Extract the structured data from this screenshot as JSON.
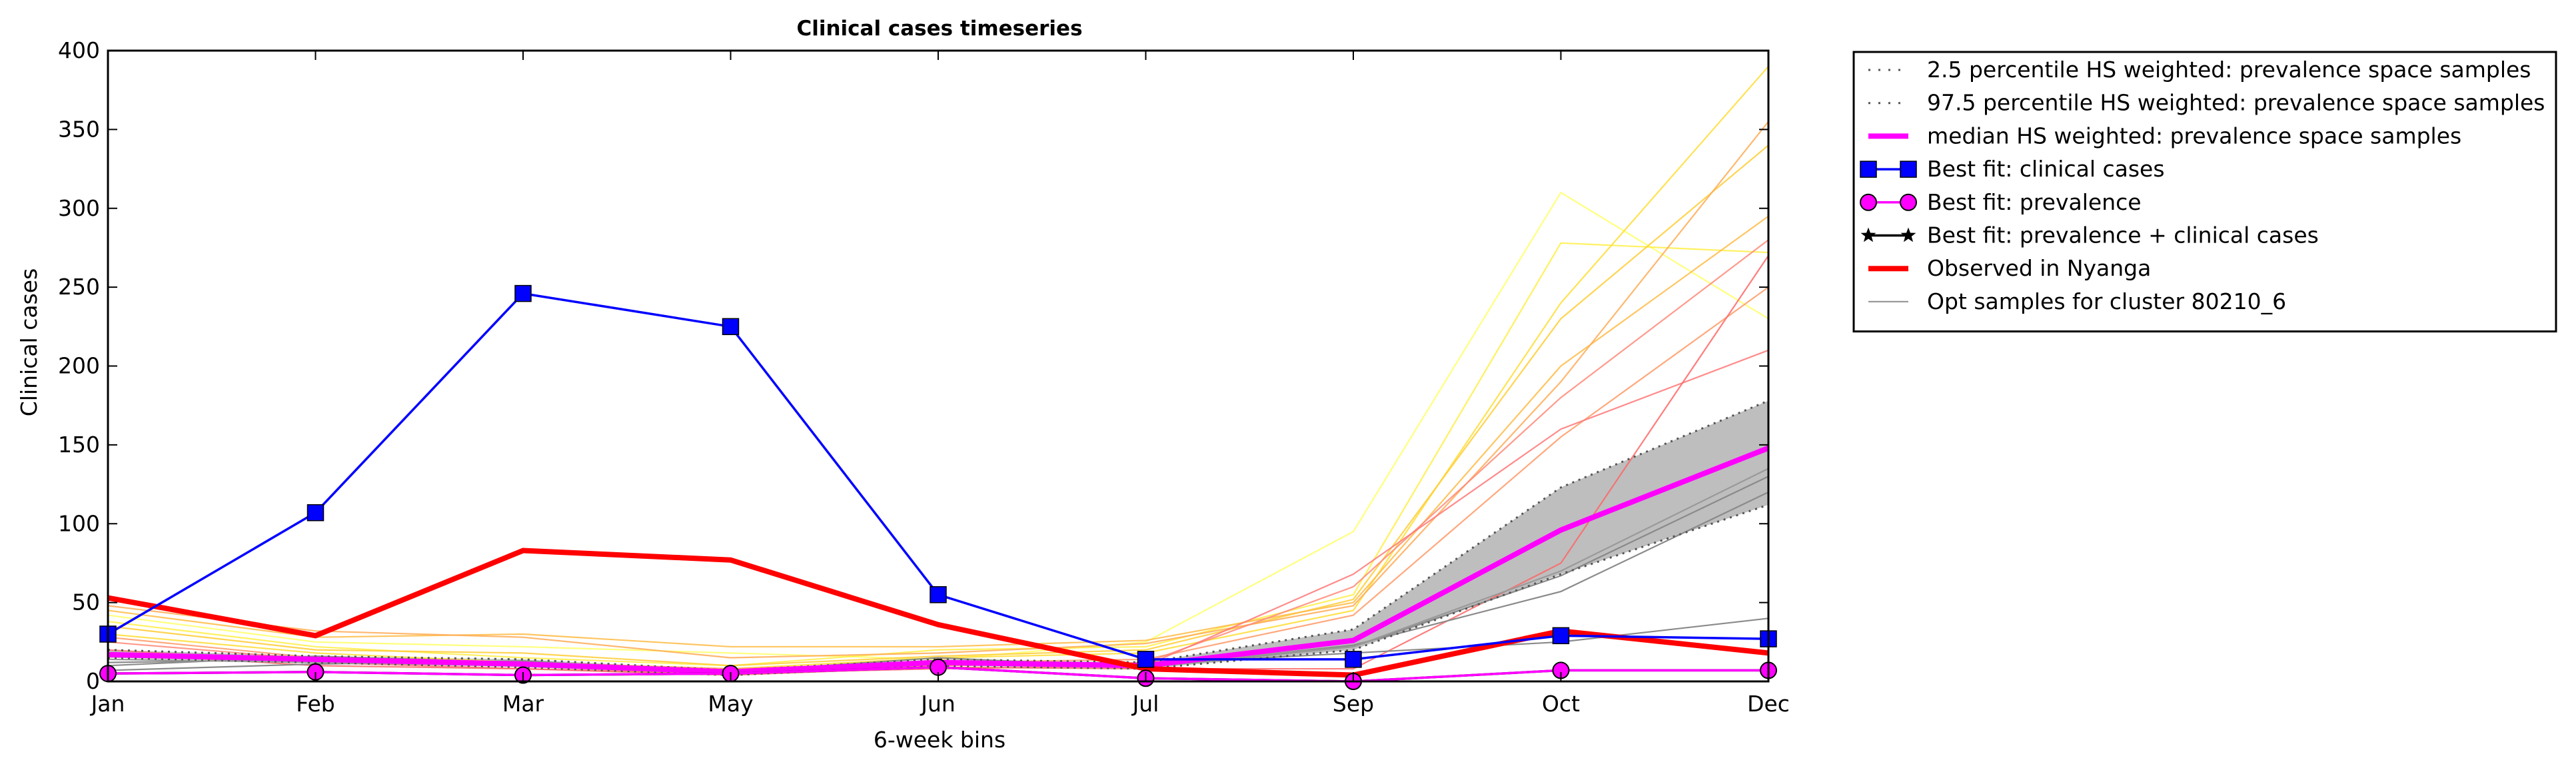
{
  "chart_data": {
    "type": "line",
    "title": "Clinical cases timeseries",
    "xlabel": "6-week bins",
    "ylabel": "Clinical cases",
    "categories": [
      "Jan",
      "Feb",
      "Mar",
      "May",
      "Jun",
      "Jul",
      "Sep",
      "Oct",
      "Dec"
    ],
    "ylim": [
      0,
      400
    ],
    "yticks": [
      0,
      50,
      100,
      150,
      200,
      250,
      300,
      350,
      400
    ],
    "grid": false,
    "legend_position": "outside-right-top",
    "band": {
      "lower": [
        15,
        12,
        9,
        4,
        10,
        8,
        20,
        68,
        112
      ],
      "upper": [
        20,
        16,
        14,
        7,
        14,
        12,
        33,
        123,
        178
      ],
      "color": "#bebebe"
    },
    "series": [
      {
        "name": "2.5 percentile HS weighted: prevalence space samples",
        "style": "dotted",
        "color": "#555555",
        "values": [
          15,
          12,
          9,
          4,
          10,
          8,
          20,
          68,
          112
        ]
      },
      {
        "name": "97.5 percentile HS weighted: prevalence space samples",
        "style": "dotted",
        "color": "#555555",
        "values": [
          20,
          16,
          14,
          7,
          14,
          12,
          33,
          123,
          178
        ]
      },
      {
        "name": "median HS weighted: prevalence space samples",
        "style": "solid",
        "color": "#ff00ff",
        "values": [
          17,
          14,
          11,
          6,
          12,
          10,
          26,
          96,
          148
        ]
      },
      {
        "name": "Best fit: clinical cases",
        "style": "solid",
        "marker": "square",
        "color": "#0000ff",
        "values": [
          30,
          107,
          246,
          225,
          55,
          14,
          14,
          29,
          27
        ]
      },
      {
        "name": "Best fit: prevalence",
        "style": "solid",
        "marker": "circle",
        "color": "#ff00ff",
        "values": [
          5,
          6,
          4,
          5,
          9,
          2,
          0,
          7,
          7
        ]
      },
      {
        "name": "Best fit: prevalence + clinical cases",
        "style": "solid",
        "marker": "star",
        "color": "#000000",
        "values": [
          5,
          6,
          4,
          5,
          9,
          2,
          0,
          7,
          7
        ]
      },
      {
        "name": "Observed in Nyanga",
        "style": "solid",
        "color": "#ff0000",
        "values": [
          53,
          29,
          83,
          77,
          36,
          8,
          4,
          32,
          18
        ]
      },
      {
        "name": "Opt samples for cluster 80210_6",
        "style": "solid",
        "color": "#999999",
        "values": [
          14,
          12,
          10,
          6,
          13,
          10,
          22,
          70,
          135
        ]
      }
    ],
    "sample_lines": {
      "gray": [
        [
          7,
          11,
          13,
          5,
          12,
          9,
          22,
          67,
          130
        ],
        [
          12,
          14,
          10,
          6,
          15,
          9,
          23,
          57,
          120
        ],
        [
          10,
          16,
          12,
          7,
          13,
          11,
          18,
          25,
          40
        ]
      ],
      "colored": [
        {
          "color": "#ffff66",
          "values": [
            42,
            25,
            22,
            18,
            14,
            25,
            95,
            310,
            230
          ]
        },
        {
          "color": "#ffee44",
          "values": [
            38,
            22,
            15,
            10,
            20,
            22,
            55,
            278,
            272
          ]
        },
        {
          "color": "#ffdd33",
          "values": [
            30,
            18,
            12,
            8,
            15,
            18,
            45,
            240,
            390
          ]
        },
        {
          "color": "#ffcc33",
          "values": [
            35,
            20,
            18,
            10,
            16,
            20,
            52,
            230,
            340
          ]
        },
        {
          "color": "#ffbb44",
          "values": [
            45,
            28,
            30,
            22,
            22,
            26,
            50,
            200,
            295
          ]
        },
        {
          "color": "#ffaa55",
          "values": [
            48,
            32,
            28,
            15,
            18,
            24,
            48,
            190,
            355
          ]
        },
        {
          "color": "#ff9966",
          "values": [
            28,
            15,
            12,
            8,
            12,
            14,
            42,
            155,
            250
          ]
        },
        {
          "color": "#ff8877",
          "values": [
            25,
            14,
            10,
            6,
            10,
            12,
            60,
            180,
            280
          ]
        },
        {
          "color": "#ff7777",
          "values": [
            20,
            12,
            8,
            5,
            8,
            10,
            68,
            160,
            210
          ]
        },
        {
          "color": "#ff6666",
          "values": [
            18,
            10,
            8,
            4,
            9,
            8,
            8,
            75,
            270
          ]
        }
      ]
    }
  }
}
